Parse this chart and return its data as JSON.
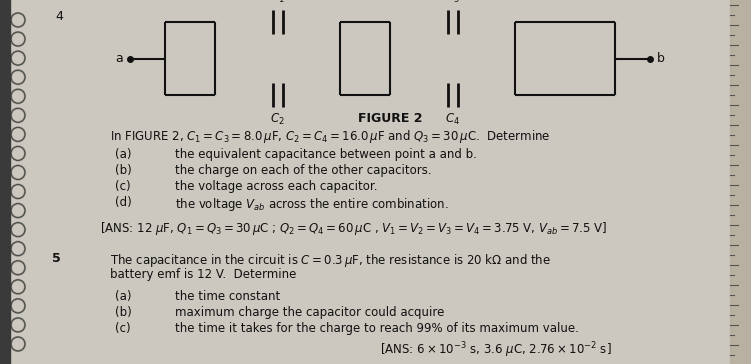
{
  "figure_title": "FIGURE 2",
  "problem4_intro": "In FIGURE 2, $C_1 = C_3 = 8.0\\,\\mu$F, $C_2 = C_4 = 16.0\\,\\mu$F and $Q_3 = 30\\,\\mu$C.  Determine",
  "problem4_parts": [
    "(a)        the equivalent capacitance between point a and b.",
    "(b)        the charge on each of the other capacitors.",
    "(c)        the voltage across each capacitor.",
    "(d)        the voltage $V_{ab}$ across the entire combination."
  ],
  "problem4_ans": "[ANS: 12 $\\mu$F, $Q_1 = Q_3 = 30\\,\\mu$C ; $Q_2 = Q_4 = 60\\,\\mu$C , $V_1 = V_2 = V_3 = V_4 = 3.75$ V, $V_{ab} = 7.5$ V]",
  "problem5_number": "5",
  "problem5_intro": "The capacitance in the circuit is $C = 0.3\\,\\mu$F, the resistance is 20 k$\\Omega$ and the",
  "problem5_intro2": "battery emf is 12 V.  Determine",
  "problem5_parts": [
    "(a)        the time constant",
    "(b)        maximum charge the capacitor could acquire",
    "(c)        the time it takes for the charge to reach 99% of its maximum value."
  ],
  "problem5_ans": "[ANS: $6 \\times 10^{-3}$ s, 3.6 $\\mu$C, $2.76 \\times 10^{-2}$ s]",
  "page_number": "4",
  "bg_color": "#ccc8bf",
  "text_color": "#111111",
  "spine_color": "#555555"
}
